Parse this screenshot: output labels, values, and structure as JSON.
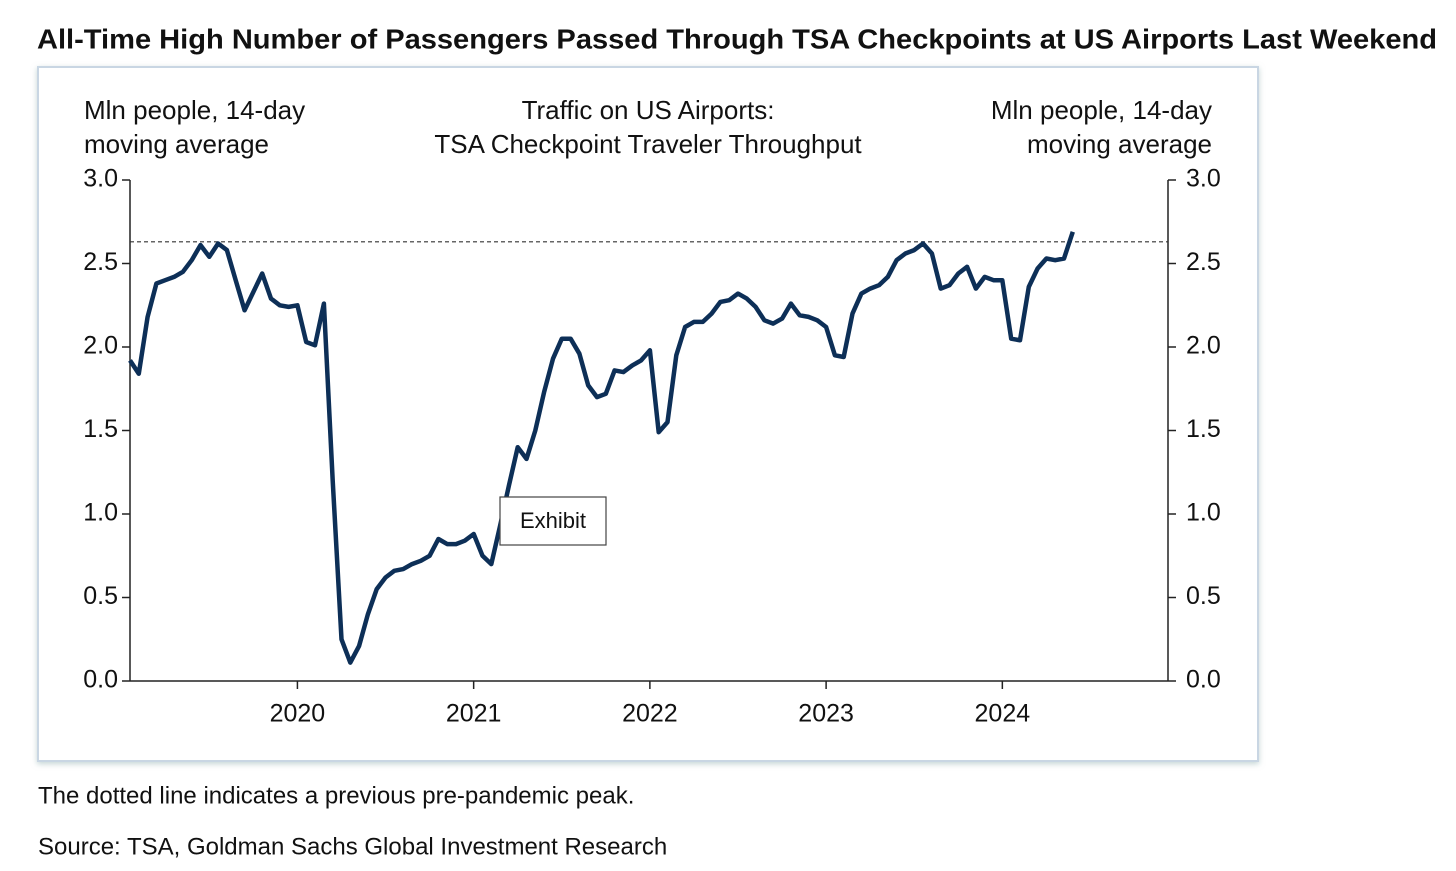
{
  "chart_data": {
    "type": "line",
    "title": "All-Time High Number of Passengers Passed Through TSA Checkpoints at US Airports Last Weekend",
    "subtitle": [
      "Traffic on US Airports:",
      "TSA Checkpoint Traveler Throughput"
    ],
    "y_label": [
      "Mln people, 14-day",
      "moving average"
    ],
    "y2_label": [
      "Mln people, 14-day",
      "moving average"
    ],
    "tooltip": "Exhibit",
    "footnote": "The dotted line indicates a previous pre-pandemic peak.",
    "source": "Source: TSA, Goldman Sachs Global Investment Research",
    "reference_line": 2.63,
    "xlim": [
      2019.05,
      2024.94
    ],
    "xticks": [
      2020,
      2021,
      2022,
      2023,
      2024
    ],
    "ylim": [
      0,
      3
    ],
    "yticks": [
      {
        "value": 0,
        "label": "0.0"
      },
      0.5,
      {
        "value": 1,
        "label": "1.0"
      },
      1.5,
      {
        "value": 2,
        "label": "2.0"
      },
      2.5,
      {
        "value": 3,
        "label": "3.0"
      }
    ],
    "y2lim": [
      0,
      3
    ],
    "y2ticks": [
      {
        "value": 0,
        "label": "0.0"
      },
      0.5,
      {
        "value": 1,
        "label": "1.0"
      },
      1.5,
      {
        "value": 2,
        "label": "2.0"
      },
      2.5,
      {
        "value": 3,
        "label": "3.0"
      }
    ],
    "x": [
      2019.05,
      2019.1,
      2019.15,
      2019.2,
      2019.25,
      2019.3,
      2019.35,
      2019.4,
      2019.45,
      2019.5,
      2019.55,
      2019.6,
      2019.65,
      2019.7,
      2019.75,
      2019.8,
      2019.85,
      2019.9,
      2019.95,
      2020.0,
      2020.05,
      2020.1,
      2020.15,
      2020.2,
      2020.25,
      2020.3,
      2020.35,
      2020.4,
      2020.45,
      2020.5,
      2020.55,
      2020.6,
      2020.65,
      2020.7,
      2020.75,
      2020.8,
      2020.85,
      2020.9,
      2020.95,
      2021.0,
      2021.05,
      2021.1,
      2021.15,
      2021.2,
      2021.25,
      2021.3,
      2021.35,
      2021.4,
      2021.45,
      2021.5,
      2021.55,
      2021.6,
      2021.65,
      2021.7,
      2021.75,
      2021.8,
      2021.85,
      2021.9,
      2021.95,
      2022.0,
      2022.05,
      2022.1,
      2022.15,
      2022.2,
      2022.25,
      2022.3,
      2022.35,
      2022.4,
      2022.45,
      2022.5,
      2022.55,
      2022.6,
      2022.65,
      2022.7,
      2022.75,
      2022.8,
      2022.85,
      2022.9,
      2022.95,
      2023.0,
      2023.05,
      2023.1,
      2023.15,
      2023.2,
      2023.25,
      2023.3,
      2023.35,
      2023.4,
      2023.45,
      2023.5,
      2023.55,
      2023.6,
      2023.65,
      2023.7,
      2023.75,
      2023.8,
      2023.85,
      2023.9,
      2023.95,
      2024.0,
      2024.05,
      2024.1,
      2024.15,
      2024.2,
      2024.25,
      2024.3,
      2024.35,
      2024.4
    ],
    "series": [
      {
        "name": "TSA Checkpoint Traveler Throughput",
        "color": "#0d2f57",
        "values": [
          1.92,
          1.84,
          2.18,
          2.38,
          2.4,
          2.42,
          2.45,
          2.52,
          2.61,
          2.54,
          2.62,
          2.58,
          2.4,
          2.22,
          2.33,
          2.44,
          2.29,
          2.25,
          2.24,
          2.25,
          2.03,
          2.01,
          2.26,
          1.2,
          0.25,
          0.11,
          0.21,
          0.4,
          0.55,
          0.62,
          0.66,
          0.67,
          0.7,
          0.72,
          0.75,
          0.85,
          0.82,
          0.82,
          0.84,
          0.88,
          0.75,
          0.7,
          0.93,
          1.17,
          1.4,
          1.33,
          1.5,
          1.73,
          1.93,
          2.05,
          2.05,
          1.96,
          1.77,
          1.7,
          1.72,
          1.86,
          1.85,
          1.89,
          1.92,
          1.98,
          1.49,
          1.55,
          1.95,
          2.12,
          2.15,
          2.15,
          2.2,
          2.27,
          2.28,
          2.32,
          2.29,
          2.24,
          2.16,
          2.14,
          2.17,
          2.26,
          2.19,
          2.18,
          2.16,
          2.12,
          1.95,
          1.94,
          2.2,
          2.32,
          2.35,
          2.37,
          2.42,
          2.52,
          2.56,
          2.58,
          2.62,
          2.56,
          2.35,
          2.37,
          2.44,
          2.48,
          2.35,
          2.42,
          2.4,
          2.4,
          2.05,
          2.04,
          2.36,
          2.47,
          2.53,
          2.52,
          2.53,
          2.69
        ]
      }
    ]
  }
}
